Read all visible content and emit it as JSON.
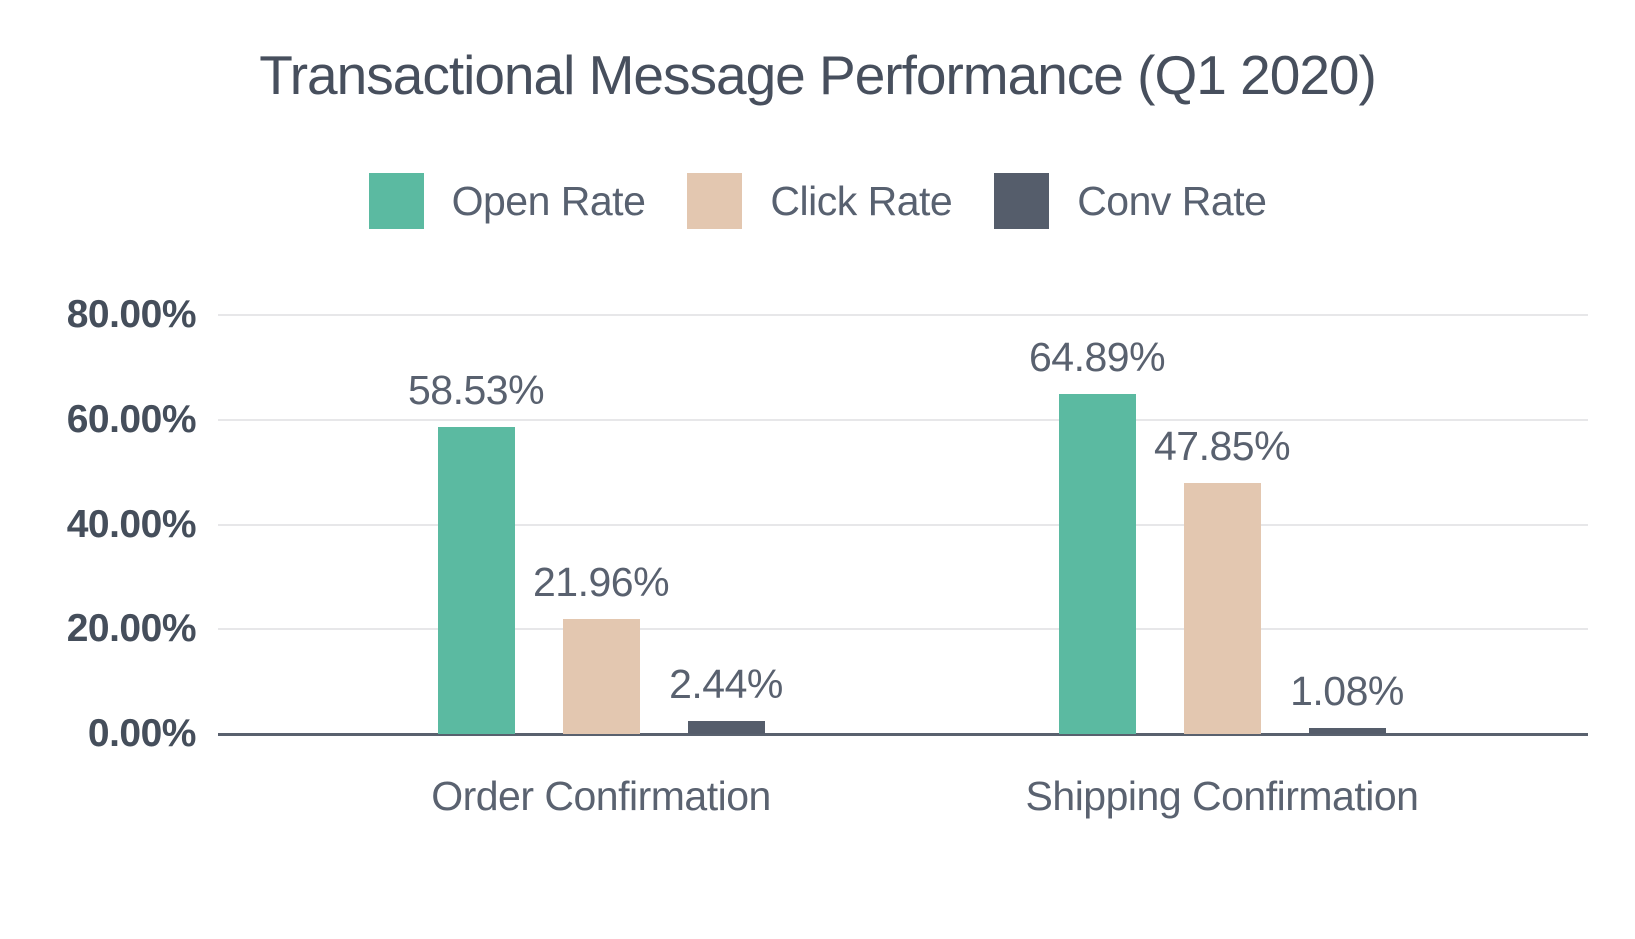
{
  "chart_data": {
    "type": "bar",
    "title": "Transactional Message Performance (Q1 2020)",
    "categories": [
      "Order Confirmation",
      "Shipping Confirmation"
    ],
    "series": [
      {
        "name": "Open Rate",
        "color": "#5BBAA1",
        "values": [
          58.53,
          64.89
        ],
        "labels": [
          "58.53%",
          "64.89%"
        ]
      },
      {
        "name": "Click Rate",
        "color": "#E3C7B0",
        "values": [
          21.96,
          47.85
        ],
        "labels": [
          "21.96%",
          "47.85%"
        ]
      },
      {
        "name": "Conv Rate",
        "color": "#555D6B",
        "values": [
          2.44,
          1.08
        ],
        "labels": [
          "2.44%",
          "1.08%"
        ]
      }
    ],
    "y_axis": {
      "ticks": [
        "80.00%",
        "60.00%",
        "40.00%",
        "20.00%",
        "0.00%"
      ],
      "min": 0,
      "max": 80
    },
    "grid": true,
    "legend_position": "top"
  },
  "colors": {
    "background": "#FFFFFF",
    "title_text": "#474F5D",
    "tick_text": "#454E5B",
    "label_text": "#59616F",
    "gridline": "#E7E7E9",
    "axis_line": "#59616E"
  }
}
